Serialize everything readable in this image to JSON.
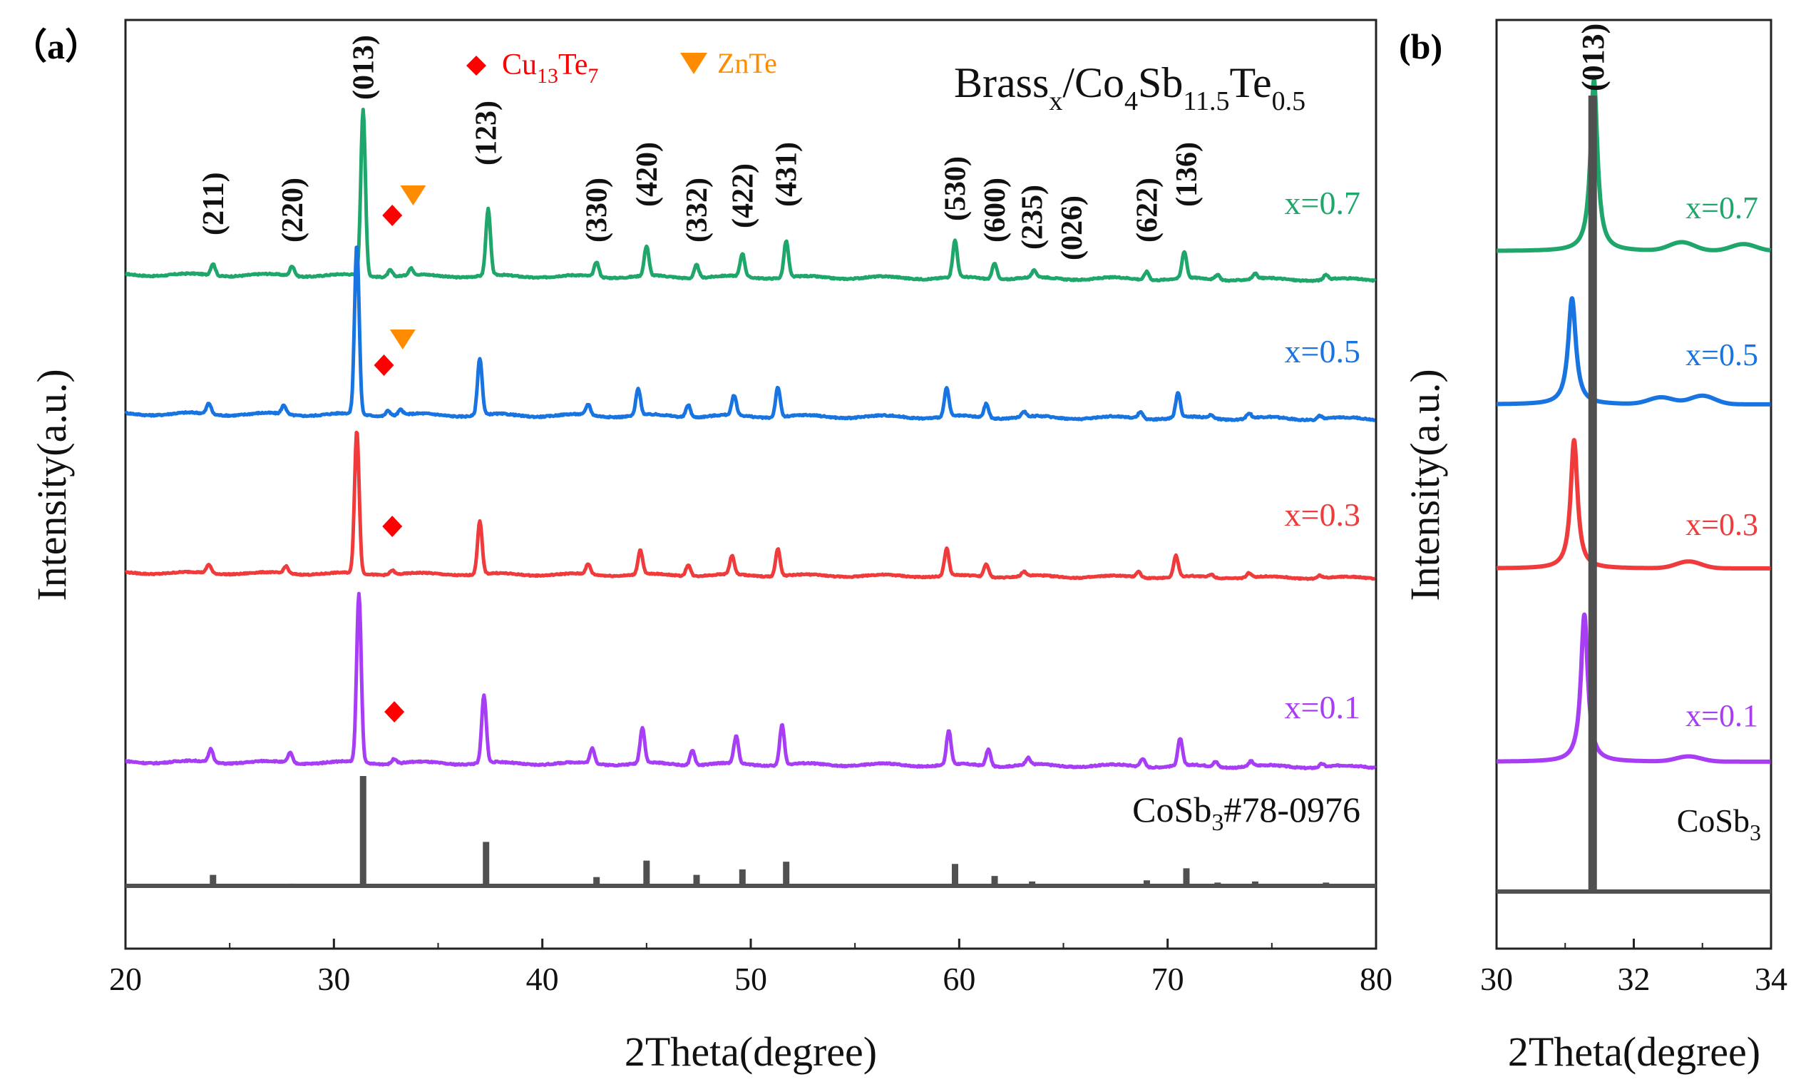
{
  "chart_data": [
    {
      "type": "line",
      "panel_label": "（a）",
      "title": "Brass",
      "title_sub1": "x",
      "title_mid1": "/Co",
      "title_sub2": "4",
      "title_mid2": "Sb",
      "title_sub3": "11.5",
      "title_mid3": "Te",
      "title_sub4": "0.5",
      "xlabel": "2Theta(degree)",
      "ylabel": "Intensity(a.u.)",
      "xlim": [
        20,
        80
      ],
      "xticks": [
        "20",
        "30",
        "40",
        "50",
        "60",
        "70",
        "80"
      ],
      "legend": [
        {
          "name": "Cu",
          "sub1": "13",
          "mid": "Te",
          "sub2": "7",
          "marker": "diamond",
          "color": "#ff0000"
        },
        {
          "name": "ZnTe",
          "marker": "triangle-down",
          "color": "#ff8c00"
        }
      ],
      "peak_labels": [
        {
          "hkl": "(211)",
          "x": 24.2
        },
        {
          "hkl": "(220)",
          "x": 28.0
        },
        {
          "hkl": "(013)",
          "x": 31.4
        },
        {
          "hkl": "(123)",
          "x": 37.3
        },
        {
          "hkl": "(330)",
          "x": 42.6
        },
        {
          "hkl": "(420)",
          "x": 45.0
        },
        {
          "hkl": "(332)",
          "x": 47.4
        },
        {
          "hkl": "(422)",
          "x": 49.6
        },
        {
          "hkl": "(431)",
          "x": 51.7
        },
        {
          "hkl": "(530)",
          "x": 59.8
        },
        {
          "hkl": "(600)",
          "x": 61.7
        },
        {
          "hkl": "(235)",
          "x": 63.5
        },
        {
          "hkl": "(026)",
          "x": 65.4
        },
        {
          "hkl": "(622)",
          "x": 69.0
        },
        {
          "hkl": "(136)",
          "x": 70.9
        }
      ],
      "series": [
        {
          "name": "x=0.7",
          "color": "#1fa66b",
          "peaks": [
            [
              24.2,
              0.07
            ],
            [
              28.0,
              0.06
            ],
            [
              31.4,
              1.0
            ],
            [
              32.7,
              0.04
            ],
            [
              33.7,
              0.04
            ],
            [
              37.4,
              0.4
            ],
            [
              42.6,
              0.09
            ],
            [
              45.0,
              0.18
            ],
            [
              47.4,
              0.08
            ],
            [
              49.6,
              0.14
            ],
            [
              51.7,
              0.22
            ],
            [
              59.8,
              0.22
            ],
            [
              61.7,
              0.1
            ],
            [
              63.6,
              0.04
            ],
            [
              69.0,
              0.05
            ],
            [
              70.8,
              0.16
            ],
            [
              72.4,
              0.03
            ],
            [
              74.2,
              0.03
            ],
            [
              77.6,
              0.03
            ]
          ],
          "markers": [
            {
              "type": "diamond",
              "x": 32.8
            },
            {
              "type": "triangle-down",
              "x": 33.8
            }
          ]
        },
        {
          "name": "x=0.5",
          "color": "#1874e0",
          "peaks": [
            [
              24.0,
              0.06
            ],
            [
              27.6,
              0.05
            ],
            [
              31.1,
              0.95
            ],
            [
              32.6,
              0.03
            ],
            [
              33.2,
              0.03
            ],
            [
              37.0,
              0.32
            ],
            [
              42.2,
              0.06
            ],
            [
              44.6,
              0.15
            ],
            [
              47.0,
              0.07
            ],
            [
              49.2,
              0.11
            ],
            [
              51.3,
              0.17
            ],
            [
              59.4,
              0.16
            ],
            [
              61.3,
              0.08
            ],
            [
              63.1,
              0.03
            ],
            [
              68.7,
              0.04
            ],
            [
              70.5,
              0.14
            ],
            [
              72.1,
              0.02
            ],
            [
              73.9,
              0.03
            ],
            [
              77.3,
              0.02
            ]
          ],
          "markers": [
            {
              "type": "diamond",
              "x": 32.4
            },
            {
              "type": "triangle-down",
              "x": 33.3
            }
          ]
        },
        {
          "name": "x=0.3",
          "color": "#ef3b3b",
          "peaks": [
            [
              24.0,
              0.06
            ],
            [
              27.7,
              0.05
            ],
            [
              31.1,
              1.0
            ],
            [
              32.8,
              0.03
            ],
            [
              37.0,
              0.37
            ],
            [
              42.2,
              0.07
            ],
            [
              44.7,
              0.17
            ],
            [
              47.0,
              0.08
            ],
            [
              49.1,
              0.13
            ],
            [
              51.3,
              0.19
            ],
            [
              59.4,
              0.19
            ],
            [
              61.3,
              0.09
            ],
            [
              63.1,
              0.03
            ],
            [
              68.6,
              0.04
            ],
            [
              70.4,
              0.15
            ],
            [
              72.1,
              0.02
            ],
            [
              73.9,
              0.03
            ],
            [
              77.3,
              0.02
            ]
          ],
          "markers": [
            {
              "type": "diamond",
              "x": 32.8
            }
          ]
        },
        {
          "name": "x=0.1",
          "color": "#a73df5",
          "peaks": [
            [
              24.1,
              0.08
            ],
            [
              27.9,
              0.06
            ],
            [
              31.2,
              1.0
            ],
            [
              32.9,
              0.03
            ],
            [
              37.2,
              0.4
            ],
            [
              42.4,
              0.09
            ],
            [
              44.8,
              0.21
            ],
            [
              47.2,
              0.09
            ],
            [
              49.3,
              0.16
            ],
            [
              51.5,
              0.24
            ],
            [
              59.5,
              0.2
            ],
            [
              61.4,
              0.1
            ],
            [
              63.3,
              0.04
            ],
            [
              68.8,
              0.05
            ],
            [
              70.6,
              0.16
            ],
            [
              72.3,
              0.03
            ],
            [
              74.0,
              0.03
            ],
            [
              77.4,
              0.02
            ]
          ],
          "markers": [
            {
              "type": "diamond",
              "x": 32.9
            }
          ]
        }
      ],
      "reference": {
        "label": "CoSb",
        "label_sub": "3",
        "label_suffix": "#78-0976",
        "color": "#505050",
        "sticks": [
          [
            24.2,
            0.1
          ],
          [
            28.0,
            0.02
          ],
          [
            31.4,
            1.0
          ],
          [
            37.3,
            0.4
          ],
          [
            42.6,
            0.08
          ],
          [
            45.0,
            0.23
          ],
          [
            47.4,
            0.1
          ],
          [
            49.6,
            0.15
          ],
          [
            51.7,
            0.22
          ],
          [
            59.8,
            0.2
          ],
          [
            61.7,
            0.09
          ],
          [
            63.5,
            0.04
          ],
          [
            69.0,
            0.05
          ],
          [
            70.9,
            0.16
          ],
          [
            72.4,
            0.03
          ],
          [
            74.2,
            0.04
          ],
          [
            77.6,
            0.03
          ]
        ]
      }
    },
    {
      "type": "line",
      "panel_label": "(b)",
      "xlabel": "2Theta(degree)",
      "ylabel": "Intensity(a.u.)",
      "xlim": [
        30,
        34
      ],
      "xticks": [
        "30",
        "32",
        "34"
      ],
      "peak_label": "(013)",
      "reference_line_x": 31.4,
      "series": [
        {
          "name": "x=0.7",
          "color": "#1fa66b",
          "peak_x": 31.42,
          "height": 1.0,
          "width": 0.09,
          "humps": [
            [
              32.7,
              0.05
            ],
            [
              33.6,
              0.04
            ]
          ]
        },
        {
          "name": "x=0.5",
          "color": "#1874e0",
          "peak_x": 31.1,
          "height": 0.62,
          "width": 0.1,
          "humps": [
            [
              32.4,
              0.04
            ],
            [
              33.0,
              0.05
            ]
          ]
        },
        {
          "name": "x=0.3",
          "color": "#ef3b3b",
          "peak_x": 31.13,
          "height": 0.75,
          "width": 0.09,
          "humps": [
            [
              32.8,
              0.04
            ]
          ]
        },
        {
          "name": "x=0.1",
          "color": "#a73df5",
          "peak_x": 31.28,
          "height": 0.86,
          "width": 0.09,
          "humps": [
            [
              32.8,
              0.03
            ]
          ]
        }
      ],
      "reference": {
        "label": "CoSb",
        "label_sub": "3",
        "color": "#505050"
      }
    }
  ]
}
